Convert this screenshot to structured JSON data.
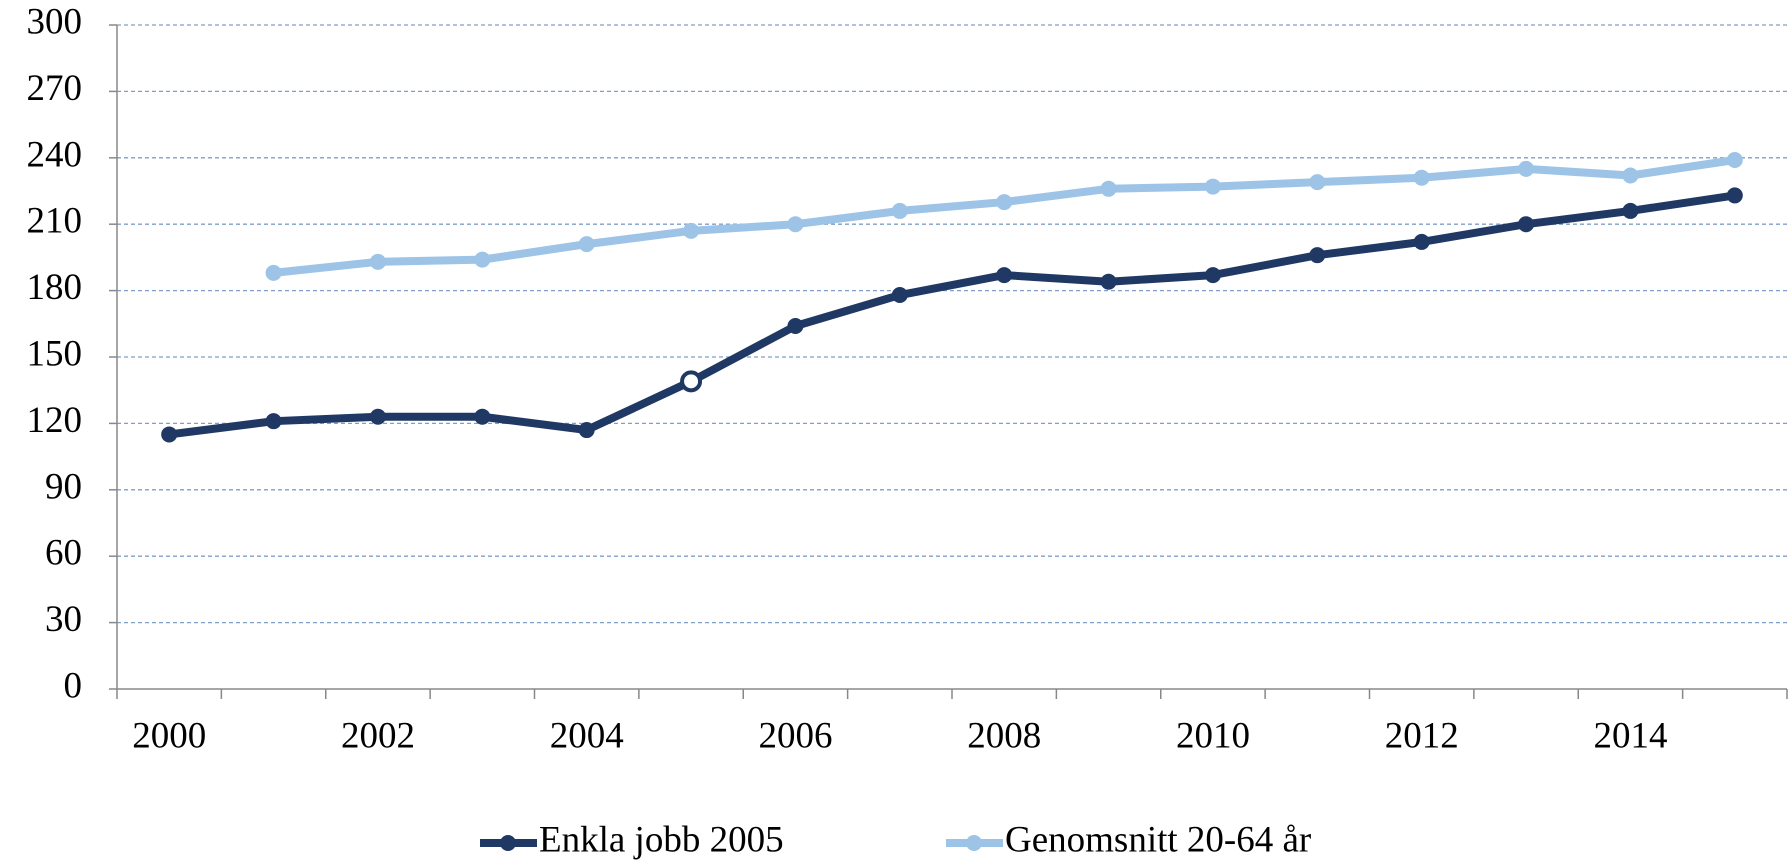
{
  "chart_data": {
    "type": "line",
    "categories": [
      "2000",
      null,
      "2002",
      null,
      "2004",
      null,
      "2006",
      null,
      "2008",
      null,
      "2010",
      null,
      "2012",
      null,
      "2014",
      null
    ],
    "series": [
      {
        "name": "Enkla jobb 2005",
        "color": "#203864",
        "open_marker_index": 5,
        "values": [
          115,
          121,
          123,
          123,
          117,
          139,
          164,
          178,
          187,
          184,
          187,
          196,
          202,
          210,
          216,
          223
        ]
      },
      {
        "name": "Genomsnitt 20-64 år",
        "color": "#9dc3e6",
        "values": [
          null,
          188,
          193,
          194,
          201,
          207,
          210,
          216,
          220,
          226,
          227,
          229,
          231,
          235,
          232,
          239
        ]
      }
    ],
    "ylim": [
      0,
      300
    ],
    "yticks": [
      0,
      30,
      60,
      90,
      120,
      150,
      180,
      210,
      240,
      270,
      300
    ],
    "grid": true,
    "legend": "bottom"
  }
}
